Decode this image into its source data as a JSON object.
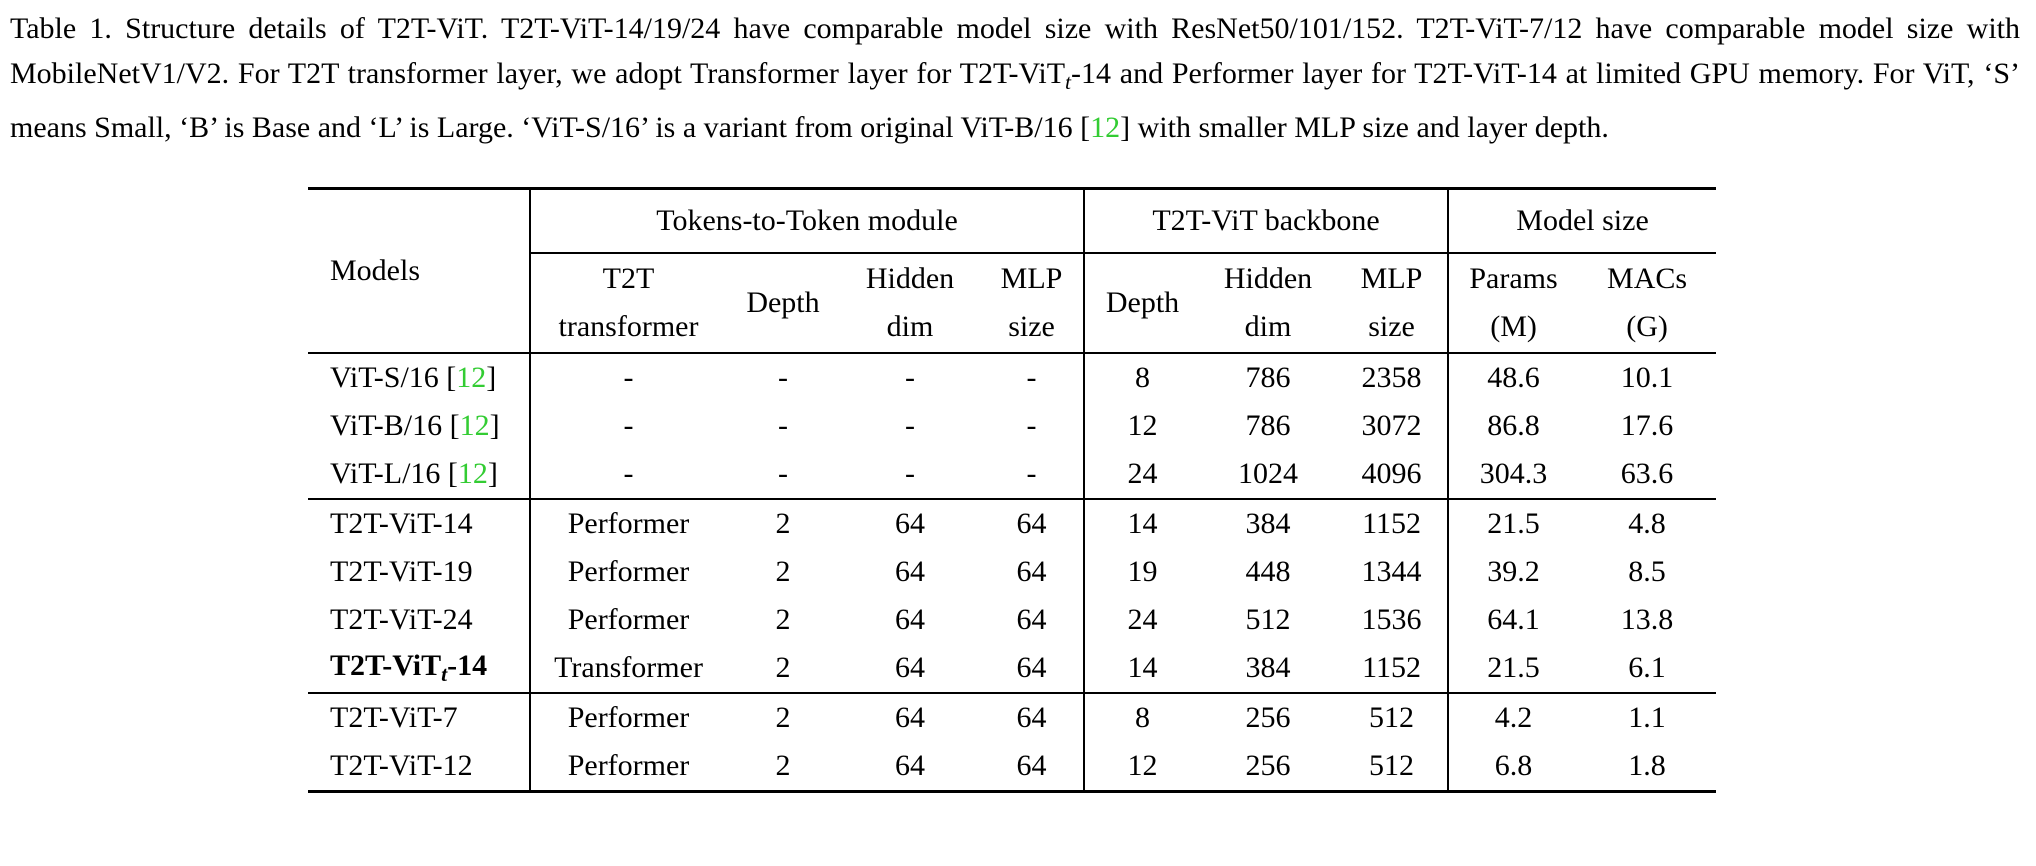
{
  "caption": {
    "label": "Table 1.",
    "text_part1": " Structure details of T2T-ViT. T2T-ViT-14/19/24 have comparable model size with ResNet50/101/152. T2T-ViT-7/12 have comparable model size with MobileNetV1/V2. For T2T transformer layer, we adopt Transformer layer for T2T-ViT",
    "sub_t": "t",
    "text_part2": "-14 and Performer layer for T2T-ViT-14 at limited GPU memory. For ViT, ‘S’ means Small, ‘B’ is Base and ‘L’ is Large. ‘ViT-S/16’ is a variant from original ViT-B/16 [",
    "cite": "12",
    "text_part3": "] with smaller MLP size and layer depth."
  },
  "table": {
    "groups": {
      "models": "Models",
      "t2t_module": "Tokens-to-Token module",
      "backbone": "T2T-ViT backbone",
      "model_size": "Model size"
    },
    "columns": {
      "t2t_transformer_l1": "T2T",
      "t2t_transformer_l2": "transformer",
      "t2t_depth": "Depth",
      "t2t_hidden_l1": "Hidden",
      "t2t_hidden_l2": "dim",
      "t2t_mlp_l1": "MLP",
      "t2t_mlp_l2": "size",
      "bb_depth": "Depth",
      "bb_hidden_l1": "Hidden",
      "bb_hidden_l2": "dim",
      "bb_mlp_l1": "MLP",
      "bb_mlp_l2": "size",
      "params_l1": "Params",
      "params_l2": "(M)",
      "macs_l1": "MACs",
      "macs_l2": "(G)"
    },
    "vit_rows": [
      {
        "model": "ViT-S/16 [",
        "cite": "12",
        "close": "]",
        "t2t": "-",
        "t2t_depth": "-",
        "t2t_hidden": "-",
        "t2t_mlp": "-",
        "depth": "8",
        "hidden": "786",
        "mlp": "2358",
        "params": "48.6",
        "macs": "10.1"
      },
      {
        "model": "ViT-B/16 [",
        "cite": "12",
        "close": "]",
        "t2t": "-",
        "t2t_depth": "-",
        "t2t_hidden": "-",
        "t2t_mlp": "-",
        "depth": "12",
        "hidden": "786",
        "mlp": "3072",
        "params": "86.8",
        "macs": "17.6"
      },
      {
        "model": "ViT-L/16 [",
        "cite": "12",
        "close": "]",
        "t2t": "-",
        "t2t_depth": "-",
        "t2t_hidden": "-",
        "t2t_mlp": "-",
        "depth": "24",
        "hidden": "1024",
        "mlp": "4096",
        "params": "304.3",
        "macs": "63.6"
      }
    ],
    "t2t_rows": [
      {
        "model": "T2T-ViT-14",
        "t2t": "Performer",
        "t2t_depth": "2",
        "t2t_hidden": "64",
        "t2t_mlp": "64",
        "depth": "14",
        "hidden": "384",
        "mlp": "1152",
        "params": "21.5",
        "macs": "4.8"
      },
      {
        "model": "T2T-ViT-19",
        "t2t": "Performer",
        "t2t_depth": "2",
        "t2t_hidden": "64",
        "t2t_mlp": "64",
        "depth": "19",
        "hidden": "448",
        "mlp": "1344",
        "params": "39.2",
        "macs": "8.5"
      },
      {
        "model": "T2T-ViT-24",
        "t2t": "Performer",
        "t2t_depth": "2",
        "t2t_hidden": "64",
        "t2t_mlp": "64",
        "depth": "24",
        "hidden": "512",
        "mlp": "1536",
        "params": "64.1",
        "macs": "13.8"
      },
      {
        "model_prefix": "T2T-ViT",
        "model_sub": "t",
        "model_suffix": "-14",
        "t2t": "Transformer",
        "t2t_depth": "2",
        "t2t_hidden": "64",
        "t2t_mlp": "64",
        "depth": "14",
        "hidden": "384",
        "mlp": "1152",
        "params": "21.5",
        "macs": "6.1"
      }
    ],
    "small_rows": [
      {
        "model": "T2T-ViT-7",
        "t2t": "Performer",
        "t2t_depth": "2",
        "t2t_hidden": "64",
        "t2t_mlp": "64",
        "depth": "8",
        "hidden": "256",
        "mlp": "512",
        "params": "4.2",
        "macs": "1.1"
      },
      {
        "model": "T2T-ViT-12",
        "t2t": "Performer",
        "t2t_depth": "2",
        "t2t_hidden": "64",
        "t2t_mlp": "64",
        "depth": "12",
        "hidden": "256",
        "mlp": "512",
        "params": "6.8",
        "macs": "1.8"
      }
    ]
  }
}
